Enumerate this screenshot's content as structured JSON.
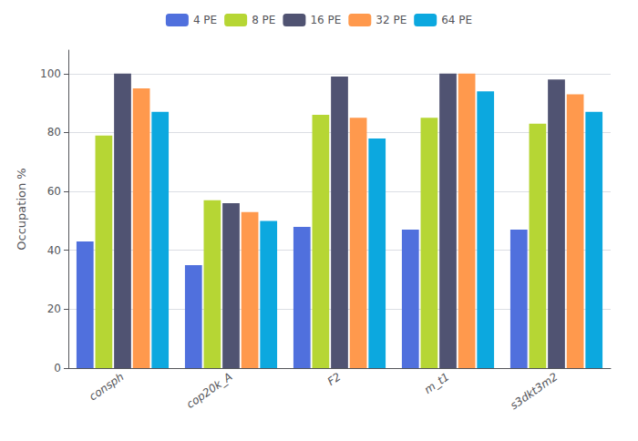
{
  "chart_data": {
    "type": "bar",
    "categories": [
      "consph",
      "cop20k_A",
      "F2",
      "m_t1",
      "s3dkt3m2"
    ],
    "series": [
      {
        "name": "4 PE",
        "values": [
          43,
          35,
          48,
          47,
          47
        ]
      },
      {
        "name": "8 PE",
        "values": [
          79,
          57,
          86,
          85,
          83
        ]
      },
      {
        "name": "16 PE",
        "values": [
          100,
          56,
          99,
          100,
          98
        ]
      },
      {
        "name": "32 PE",
        "values": [
          95,
          53,
          85,
          100,
          93
        ]
      },
      {
        "name": "64 PE",
        "values": [
          87,
          50,
          78,
          94,
          87
        ]
      }
    ],
    "ylabel": "Occupation %",
    "ylim": [
      0,
      108
    ],
    "yticks": [
      0,
      20,
      40,
      60,
      80,
      100
    ],
    "grid": true,
    "legend": "top"
  }
}
